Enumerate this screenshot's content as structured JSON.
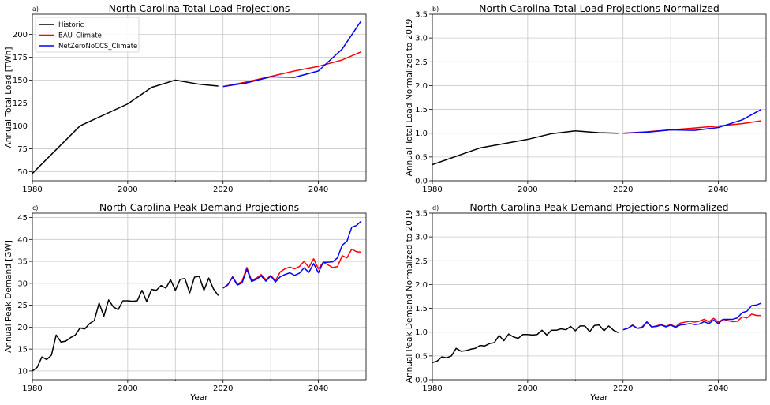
{
  "colors": {
    "Historic": "#000000",
    "BAU_Climate": "#ff0000",
    "NetZeroNoCCS_Climate": "#0000ff",
    "grid": "#c8c8c8"
  },
  "legend": {
    "entries": [
      "Historic",
      "BAU_Climate",
      "NetZeroNoCCS_Climate"
    ],
    "position": "top-left",
    "panel": 0
  },
  "chart_data": [
    {
      "letter": "a)",
      "type": "line",
      "title": "North Carolina Total Load Projections",
      "xlabel": "",
      "ylabel": "Annual Total Load [TWh]",
      "xlim": [
        1980,
        2050
      ],
      "ylim": [
        40,
        222
      ],
      "xticks": [
        1980,
        2000,
        2020,
        2040
      ],
      "yticks": [
        50,
        75,
        100,
        125,
        150,
        175,
        200
      ],
      "grid": true,
      "series": [
        {
          "name": "Historic",
          "x": [
            1980,
            1990,
            2000,
            2005,
            2010,
            2015,
            2019
          ],
          "y": [
            48,
            100,
            124,
            142,
            150,
            145.5,
            143.5
          ]
        },
        {
          "name": "BAU_Climate",
          "x": [
            2020,
            2025,
            2030,
            2035,
            2040,
            2045,
            2049
          ],
          "y": [
            143,
            148,
            154,
            160,
            165,
            172,
            181
          ]
        },
        {
          "name": "NetZeroNoCCS_Climate",
          "x": [
            2020,
            2025,
            2030,
            2035,
            2040,
            2045,
            2049
          ],
          "y": [
            143,
            147,
            153.5,
            153,
            160,
            184,
            215
          ]
        }
      ]
    },
    {
      "letter": "b)",
      "type": "line",
      "title": "North Carolina Total Load Projections Normalized",
      "xlabel": "",
      "ylabel": "Annual Total Load Normalized to 2019",
      "xlim": [
        1980,
        2050
      ],
      "ylim": [
        0,
        3.5
      ],
      "xticks": [
        1980,
        2000,
        2020,
        2040
      ],
      "yticks": [
        0.0,
        0.5,
        1.0,
        1.5,
        2.0,
        2.5,
        3.0,
        3.5
      ],
      "ytick_labels": [
        "0.0",
        "0.5",
        "1.0",
        "1.5",
        "2.0",
        "2.5",
        "3.0",
        "3.5"
      ],
      "grid": true,
      "series": [
        {
          "name": "Historic",
          "x": [
            1980,
            1990,
            2000,
            2005,
            2010,
            2015,
            2019
          ],
          "y": [
            0.34,
            0.69,
            0.87,
            0.99,
            1.05,
            1.01,
            1.0
          ]
        },
        {
          "name": "BAU_Climate",
          "x": [
            2020,
            2025,
            2030,
            2035,
            2040,
            2045,
            2049
          ],
          "y": [
            1.0,
            1.03,
            1.07,
            1.11,
            1.15,
            1.2,
            1.26
          ]
        },
        {
          "name": "NetZeroNoCCS_Climate",
          "x": [
            2020,
            2025,
            2030,
            2035,
            2040,
            2045,
            2049
          ],
          "y": [
            1.0,
            1.02,
            1.07,
            1.06,
            1.12,
            1.28,
            1.5
          ]
        }
      ]
    },
    {
      "letter": "c)",
      "type": "line",
      "title": "North Carolina Peak Demand Projections",
      "xlabel": "Year",
      "ylabel": "Annual Peak Demand [GW]",
      "xlim": [
        1980,
        2050
      ],
      "ylim": [
        8,
        46
      ],
      "xticks": [
        1980,
        2000,
        2020,
        2040
      ],
      "yticks": [
        10,
        15,
        20,
        25,
        30,
        35,
        40,
        45
      ],
      "grid": true,
      "series": [
        {
          "name": "Historic",
          "x": [
            1980,
            1981,
            1982,
            1983,
            1984,
            1985,
            1986,
            1987,
            1988,
            1989,
            1990,
            1991,
            1992,
            1993,
            1994,
            1995,
            1996,
            1997,
            1998,
            1999,
            2000,
            2001,
            2002,
            2003,
            2004,
            2005,
            2006,
            2007,
            2008,
            2009,
            2010,
            2011,
            2012,
            2013,
            2014,
            2015,
            2016,
            2017,
            2018,
            2019
          ],
          "y": [
            10,
            10.8,
            13.2,
            12.6,
            13.6,
            18.2,
            16.6,
            16.8,
            17.6,
            18.2,
            19.8,
            19.6,
            20.8,
            21.5,
            25.5,
            22.5,
            26.2,
            24.6,
            24,
            26,
            26,
            25.9,
            26,
            28.4,
            25.8,
            28.6,
            28.4,
            29.5,
            28.9,
            30.8,
            28.4,
            30.9,
            31.1,
            27.8,
            31.4,
            31.6,
            28.4,
            31.2,
            28.7,
            27.2
          ]
        },
        {
          "name": "BAU_Climate",
          "x": [
            2020,
            2021,
            2022,
            2023,
            2024,
            2025,
            2026,
            2027,
            2028,
            2029,
            2030,
            2031,
            2032,
            2033,
            2034,
            2035,
            2036,
            2037,
            2038,
            2039,
            2040,
            2041,
            2042,
            2043,
            2044,
            2045,
            2046,
            2047,
            2048,
            2049
          ],
          "y": [
            28.9,
            29.6,
            31.5,
            29.8,
            30.5,
            33.6,
            30.6,
            31.2,
            32,
            30.8,
            31.8,
            30.6,
            32.6,
            33.3,
            33.7,
            33.3,
            33.8,
            35,
            33.6,
            35.6,
            33.3,
            34.8,
            34.2,
            33.6,
            33.8,
            36.3,
            35.8,
            37.8,
            37.2,
            37.1
          ]
        },
        {
          "name": "NetZeroNoCCS_Climate",
          "x": [
            2020,
            2021,
            2022,
            2023,
            2024,
            2025,
            2026,
            2027,
            2028,
            2029,
            2030,
            2031,
            2032,
            2033,
            2034,
            2035,
            2036,
            2037,
            2038,
            2039,
            2040,
            2041,
            2042,
            2043,
            2044,
            2045,
            2046,
            2047,
            2048,
            2049
          ],
          "y": [
            28.9,
            29.7,
            31.4,
            29.6,
            30.1,
            33.2,
            30.4,
            30.9,
            31.7,
            30.5,
            31.7,
            30.3,
            31.5,
            32,
            32.4,
            31.8,
            32.3,
            33.5,
            32.5,
            34.5,
            32.4,
            34.8,
            34.8,
            34.9,
            35.8,
            38.7,
            39.6,
            42.8,
            43.2,
            44.2
          ]
        }
      ]
    },
    {
      "letter": "d)",
      "type": "line",
      "title": "North Carolina Peak Demand Projections Normalized",
      "xlabel": "Year",
      "ylabel": "Annual Peak Demand Normalized to 2019",
      "xlim": [
        1980,
        2050
      ],
      "ylim": [
        0,
        3.5
      ],
      "xticks": [
        1980,
        2000,
        2020,
        2040
      ],
      "yticks": [
        0.0,
        0.5,
        1.0,
        1.5,
        2.0,
        2.5,
        3.0,
        3.5
      ],
      "ytick_labels": [
        "0.0",
        "0.5",
        "1.0",
        "1.5",
        "2.0",
        "2.5",
        "3.0",
        "3.5"
      ],
      "grid": true,
      "series": [
        {
          "name": "Historic",
          "x": [
            1980,
            1981,
            1982,
            1983,
            1984,
            1985,
            1986,
            1987,
            1988,
            1989,
            1990,
            1991,
            1992,
            1993,
            1994,
            1995,
            1996,
            1997,
            1998,
            1999,
            2000,
            2001,
            2002,
            2003,
            2004,
            2005,
            2006,
            2007,
            2008,
            2009,
            2010,
            2011,
            2012,
            2013,
            2014,
            2015,
            2016,
            2017,
            2018,
            2019
          ],
          "y": [
            0.36,
            0.39,
            0.48,
            0.46,
            0.5,
            0.66,
            0.6,
            0.61,
            0.64,
            0.66,
            0.72,
            0.71,
            0.76,
            0.78,
            0.93,
            0.82,
            0.96,
            0.9,
            0.87,
            0.95,
            0.95,
            0.94,
            0.95,
            1.04,
            0.94,
            1.04,
            1.04,
            1.07,
            1.05,
            1.12,
            1.03,
            1.13,
            1.13,
            1.01,
            1.14,
            1.15,
            1.03,
            1.13,
            1.04,
            0.99
          ]
        },
        {
          "name": "BAU_Climate",
          "x": [
            2020,
            2021,
            2022,
            2023,
            2024,
            2025,
            2026,
            2027,
            2028,
            2029,
            2030,
            2031,
            2032,
            2033,
            2034,
            2035,
            2036,
            2037,
            2038,
            2039,
            2040,
            2041,
            2042,
            2043,
            2044,
            2045,
            2046,
            2047,
            2048,
            2049
          ],
          "y": [
            1.05,
            1.08,
            1.15,
            1.08,
            1.11,
            1.22,
            1.11,
            1.13,
            1.16,
            1.12,
            1.16,
            1.11,
            1.19,
            1.21,
            1.23,
            1.21,
            1.23,
            1.27,
            1.22,
            1.29,
            1.21,
            1.27,
            1.24,
            1.22,
            1.23,
            1.32,
            1.3,
            1.38,
            1.35,
            1.35
          ]
        },
        {
          "name": "NetZeroNoCCS_Climate",
          "x": [
            2020,
            2021,
            2022,
            2023,
            2024,
            2025,
            2026,
            2027,
            2028,
            2029,
            2030,
            2031,
            2032,
            2033,
            2034,
            2035,
            2036,
            2037,
            2038,
            2039,
            2040,
            2041,
            2042,
            2043,
            2044,
            2045,
            2046,
            2047,
            2048,
            2049
          ],
          "y": [
            1.05,
            1.08,
            1.14,
            1.08,
            1.09,
            1.21,
            1.11,
            1.12,
            1.15,
            1.11,
            1.15,
            1.1,
            1.15,
            1.16,
            1.18,
            1.16,
            1.17,
            1.22,
            1.18,
            1.25,
            1.18,
            1.27,
            1.27,
            1.27,
            1.3,
            1.41,
            1.44,
            1.56,
            1.57,
            1.61
          ]
        }
      ]
    }
  ]
}
